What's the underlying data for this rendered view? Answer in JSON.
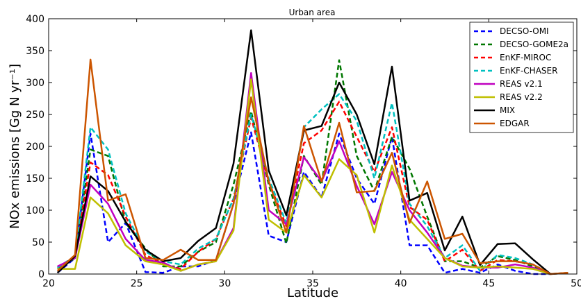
{
  "chart_data": {
    "type": "line",
    "title": "Urban area",
    "xlabel": "Latitude",
    "ylabel": "NOx emissions [Gg N yr⁻¹]",
    "xlim": [
      20,
      50
    ],
    "ylim": [
      0,
      400
    ],
    "xticks": [
      20,
      25,
      30,
      35,
      40,
      45,
      50
    ],
    "yticks": [
      0,
      50,
      100,
      150,
      200,
      250,
      300,
      350,
      400
    ],
    "legend_position": "top-right",
    "x": [
      20.5,
      21.5,
      22.375,
      23.375,
      24.375,
      25.5,
      26.5,
      27.5,
      28.5,
      29.5,
      30.5,
      31.5,
      32.5,
      33.5,
      34.5,
      35.5,
      36.5,
      37.5,
      38.5,
      39.5,
      40.5,
      41.5,
      42.5,
      43.5,
      44.5,
      45.5,
      46.5,
      47.5,
      48.5,
      49.5
    ],
    "series": [
      {
        "name": "DECSO-OMI",
        "color": "#0000ff",
        "dash": true,
        "values": [
          2,
          25,
          220,
          50,
          80,
          3,
          2,
          12,
          12,
          22,
          110,
          222,
          60,
          50,
          160,
          120,
          220,
          150,
          110,
          215,
          45,
          45,
          2,
          8,
          2,
          15,
          5,
          0,
          0,
          null
        ]
      },
      {
        "name": "DECSO-GOME2a",
        "color": "#007700",
        "dash": true,
        "values": [
          8,
          25,
          195,
          185,
          80,
          40,
          12,
          12,
          35,
          50,
          140,
          255,
          140,
          48,
          185,
          140,
          335,
          185,
          130,
          215,
          165,
          90,
          20,
          20,
          10,
          28,
          22,
          12,
          0,
          null
        ]
      },
      {
        "name": "EnKF-MIROC",
        "color": "#ff0000",
        "dash": true,
        "values": [
          10,
          28,
          175,
          155,
          90,
          30,
          15,
          8,
          35,
          55,
          118,
          245,
          145,
          75,
          205,
          225,
          270,
          215,
          160,
          230,
          105,
          85,
          20,
          38,
          5,
          22,
          20,
          15,
          0,
          null
        ]
      },
      {
        "name": "EnKF-CHASER",
        "color": "#00c0c0",
        "dash": true,
        "values": [
          10,
          28,
          230,
          195,
          95,
          35,
          20,
          15,
          40,
          55,
          118,
          250,
          150,
          80,
          230,
          258,
          282,
          240,
          150,
          268,
          110,
          75,
          25,
          45,
          5,
          30,
          25,
          15,
          0,
          null
        ]
      },
      {
        "name": "REAS v2.1",
        "color": "#c000c0",
        "dash": false,
        "values": [
          12,
          25,
          140,
          110,
          55,
          22,
          18,
          5,
          15,
          20,
          72,
          315,
          100,
          78,
          183,
          145,
          208,
          138,
          78,
          160,
          100,
          65,
          25,
          13,
          10,
          10,
          15,
          10,
          0,
          null
        ]
      },
      {
        "name": "REAS v2.2",
        "color": "#bfbf00",
        "dash": false,
        "values": [
          8,
          8,
          120,
          95,
          45,
          20,
          15,
          5,
          15,
          20,
          68,
          305,
          85,
          65,
          155,
          120,
          180,
          155,
          65,
          170,
          85,
          55,
          25,
          12,
          10,
          12,
          10,
          8,
          0,
          null
        ]
      },
      {
        "name": "MIX",
        "color": "#000000",
        "dash": false,
        "values": [
          2,
          28,
          153,
          130,
          82,
          38,
          20,
          25,
          52,
          72,
          173,
          382,
          162,
          92,
          225,
          232,
          300,
          250,
          172,
          325,
          115,
          127,
          37,
          90,
          14,
          47,
          48,
          23,
          0,
          2
        ]
      },
      {
        "name": "EDGAR",
        "color": "#cc5500",
        "dash": false,
        "values": [
          5,
          30,
          336,
          115,
          125,
          25,
          22,
          38,
          22,
          22,
          110,
          277,
          145,
          65,
          232,
          145,
          237,
          128,
          130,
          190,
          80,
          145,
          55,
          63,
          17,
          20,
          20,
          15,
          0,
          2
        ]
      }
    ]
  }
}
